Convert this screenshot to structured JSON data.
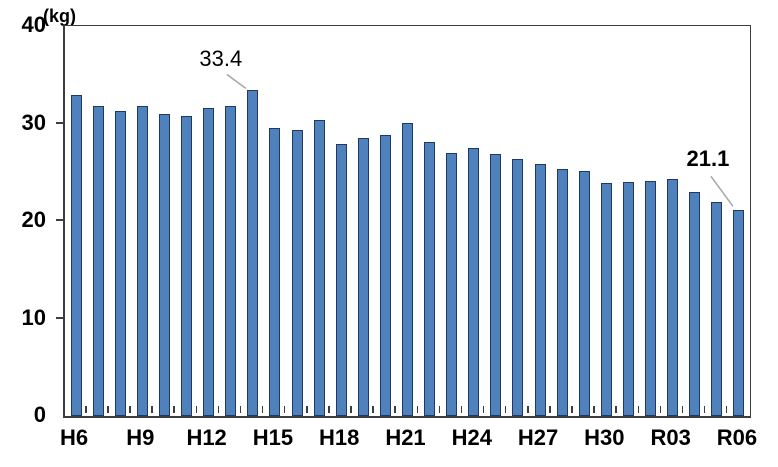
{
  "chart_data": {
    "type": "bar",
    "title": "",
    "unit_label": "(kg)",
    "xlabel": "",
    "ylabel": "kg",
    "ylim": [
      0,
      40
    ],
    "y_ticks": [
      0,
      10,
      20,
      30,
      40
    ],
    "grid": false,
    "legend": false,
    "categories": [
      "H6",
      "H7",
      "H8",
      "H9",
      "H10",
      "H11",
      "H12",
      "H13",
      "H14",
      "H15",
      "H16",
      "H17",
      "H18",
      "H19",
      "H20",
      "H21",
      "H22",
      "H23",
      "H24",
      "H25",
      "H26",
      "H27",
      "H28",
      "H29",
      "H30",
      "R01",
      "R02",
      "R03",
      "R04",
      "R05",
      "R06"
    ],
    "values": [
      32.9,
      31.8,
      31.3,
      31.8,
      31.0,
      30.8,
      31.6,
      31.8,
      33.4,
      29.5,
      29.3,
      30.4,
      27.9,
      28.5,
      28.8,
      30.1,
      28.1,
      27.0,
      27.5,
      26.9,
      26.4,
      25.8,
      25.3,
      25.1,
      23.9,
      24.0,
      24.1,
      24.3,
      23.0,
      22.0,
      21.1
    ],
    "x_tick_labels": [
      "H6",
      "H9",
      "H12",
      "H15",
      "H18",
      "H21",
      "H24",
      "H27",
      "H30",
      "R03",
      "R06"
    ],
    "annotations": [
      {
        "label": "33.4",
        "category": "H14",
        "bold": false
      },
      {
        "label": "21.1",
        "category": "R06",
        "bold": true
      }
    ],
    "bar_color": "#4F81BD",
    "bar_border_color": "#1F3864",
    "axis_color": "#3d3d3d",
    "leader_line_color": "#A6A6A6",
    "text_color": "#000000"
  }
}
